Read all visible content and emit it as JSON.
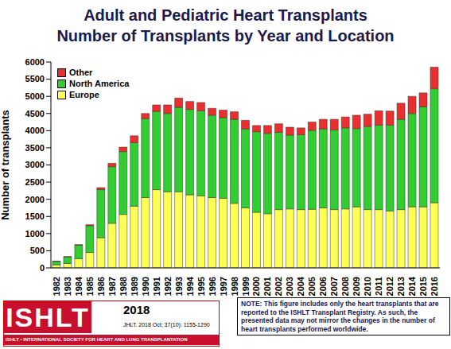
{
  "chart_data": {
    "type": "bar",
    "title": "Adult and Pediatric Heart Transplants",
    "subtitle": "Number of Transplants by Year and Location",
    "y_label": "Number of transplants",
    "categories": [
      "1982",
      "1983",
      "1984",
      "1985",
      "1986",
      "1987",
      "1988",
      "1989",
      "1990",
      "1991",
      "1992",
      "1993",
      "1994",
      "1995",
      "1996",
      "1997",
      "1998",
      "1999",
      "2000",
      "2001",
      "2002",
      "2003",
      "2004",
      "2005",
      "2006",
      "2007",
      "2008",
      "2009",
      "2010",
      "2011",
      "2012",
      "2013",
      "2014",
      "2015",
      "2016"
    ],
    "series": [
      {
        "name": "Europe",
        "color": "#ffff55",
        "values": [
          90,
          130,
          270,
          450,
          880,
          1300,
          1560,
          1800,
          2050,
          2280,
          2220,
          2220,
          2130,
          2100,
          2050,
          2030,
          1880,
          1750,
          1620,
          1580,
          1700,
          1720,
          1700,
          1710,
          1750,
          1700,
          1720,
          1780,
          1700,
          1700,
          1660,
          1700,
          1780,
          1780,
          1900
        ]
      },
      {
        "name": "North America",
        "color": "#33cc33",
        "values": [
          100,
          190,
          390,
          780,
          1400,
          1650,
          1830,
          1850,
          2300,
          2280,
          2280,
          2460,
          2490,
          2480,
          2400,
          2350,
          2450,
          2300,
          2350,
          2340,
          2250,
          2150,
          2180,
          2300,
          2300,
          2320,
          2360,
          2280,
          2420,
          2460,
          2500,
          2630,
          2720,
          2920,
          3320
        ]
      },
      {
        "name": "Other",
        "color": "#e83030",
        "values": [
          10,
          10,
          20,
          30,
          60,
          100,
          130,
          200,
          150,
          190,
          250,
          270,
          230,
          240,
          200,
          220,
          220,
          250,
          180,
          230,
          250,
          230,
          200,
          240,
          280,
          310,
          320,
          390,
          360,
          420,
          410,
          470,
          500,
          400,
          630
        ]
      }
    ],
    "ylim": [
      0,
      6000
    ],
    "yticks": [
      0,
      500,
      1000,
      1500,
      2000,
      2500,
      3000,
      3500,
      4000,
      4500,
      5000,
      5500,
      6000
    ],
    "stacked": true,
    "legend": "upper left",
    "grid": false
  },
  "footer": {
    "logo_text": "ISHLT",
    "logo_subtitle": "ISHLT • INTERNATIONAL SOCIETY FOR HEART AND LUNG TRANSPLANTATION",
    "year": "2018",
    "citation": "JHLT. 2018 Oct; 37(10): 1155-1290",
    "note": "NOTE: This figure includes only the heart transplants that are reported to the ISHLT Transplant Registry. As such, the presented data may not mirror the changes in the number of heart transplants performed worldwide."
  }
}
